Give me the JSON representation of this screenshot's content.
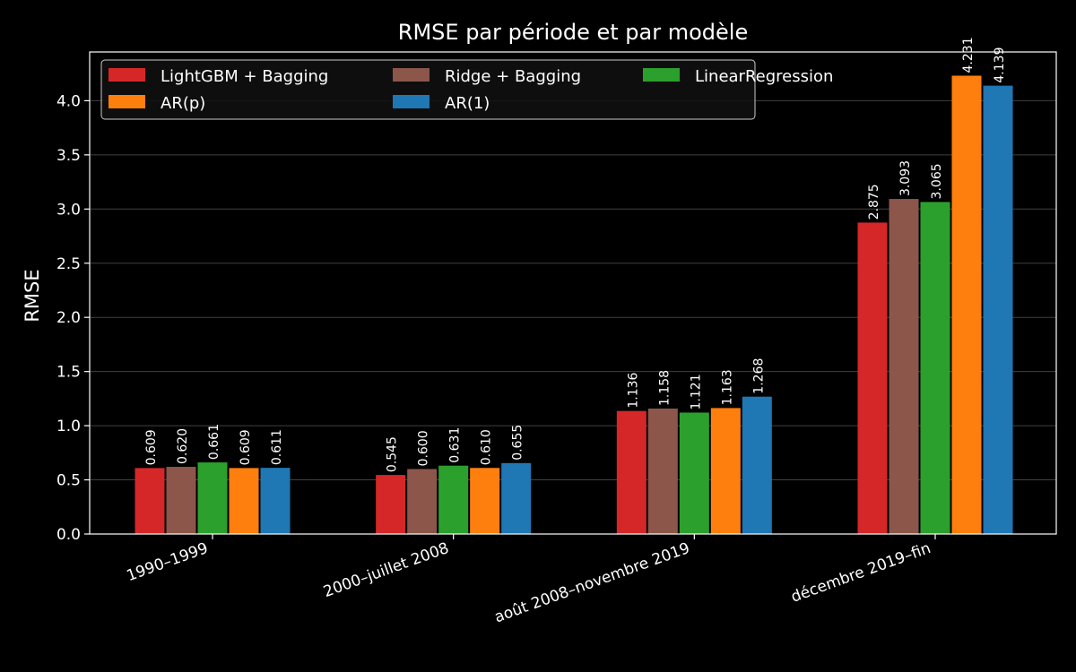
{
  "chart_data": {
    "type": "bar",
    "title": "RMSE par période et par modèle",
    "xlabel": "",
    "ylabel": "RMSE",
    "ylim": [
      0,
      4.45
    ],
    "yticks": [
      "0.0",
      "0.5",
      "1.0",
      "1.5",
      "2.0",
      "2.5",
      "3.0",
      "3.5",
      "4.0"
    ],
    "grid": "horizontal",
    "legend_position": "top-left",
    "categories": [
      "1990–1999",
      "2000–juillet 2008",
      "août 2008–novembre 2019",
      "décembre 2019–fin"
    ],
    "series": [
      {
        "name": "LightGBM + Bagging",
        "color": "#d62728",
        "values": [
          0.609,
          0.545,
          1.136,
          2.875
        ],
        "labels": [
          "0.609",
          "0.545",
          "1.136",
          "2.875"
        ]
      },
      {
        "name": "Ridge + Bagging",
        "color": "#8c564b",
        "values": [
          0.62,
          0.6,
          1.158,
          3.093
        ],
        "labels": [
          "0.620",
          "0.600",
          "1.158",
          "3.093"
        ]
      },
      {
        "name": "LinearRegression",
        "color": "#2ca02c",
        "values": [
          0.661,
          0.631,
          1.121,
          3.065
        ],
        "labels": [
          "0.661",
          "0.631",
          "1.121",
          "3.065"
        ]
      },
      {
        "name": "AR(p)",
        "color": "#ff7f0e",
        "values": [
          0.609,
          0.61,
          1.163,
          4.231
        ],
        "labels": [
          "0.609",
          "0.610",
          "1.163",
          "4.231"
        ]
      },
      {
        "name": "AR(1)",
        "color": "#1f77b4",
        "values": [
          0.611,
          0.655,
          1.268,
          4.139
        ],
        "labels": [
          "0.611",
          "0.655",
          "1.268",
          "4.139"
        ]
      }
    ]
  }
}
